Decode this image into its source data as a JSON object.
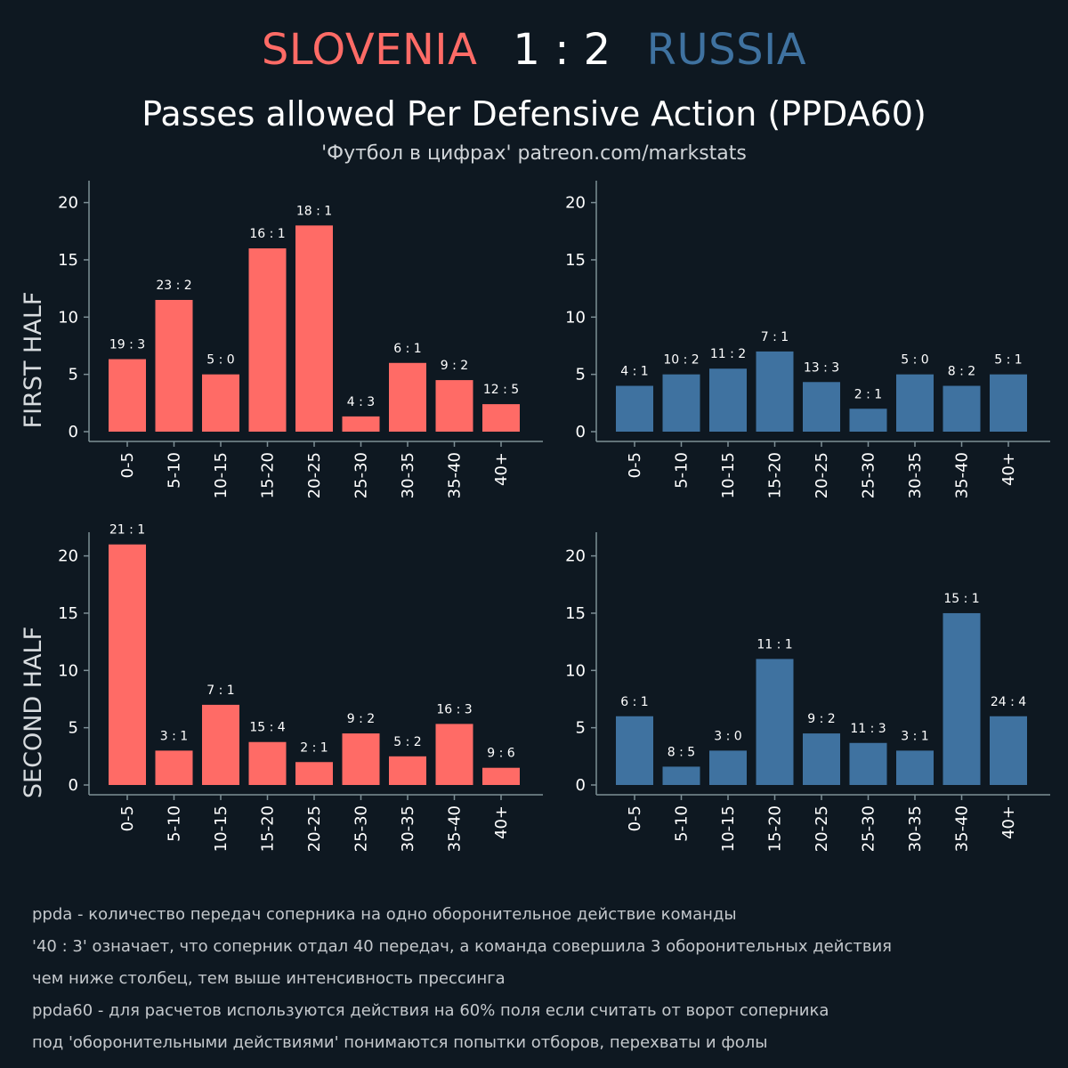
{
  "header": {
    "home_team": "SLOVENIA",
    "score": "1 : 2",
    "away_team": "RUSSIA",
    "title": "Passes allowed Per Defensive Action (PPDA60)",
    "subtitle": "'Футбол в цифрах' patreon.com/markstats"
  },
  "colors": {
    "background": "#0e1821",
    "home": "#ff6b66",
    "away": "#3f72a0",
    "axis": "#7d8f96",
    "text": "#ffffff",
    "muted": "#c4c8cc"
  },
  "chart_data": [
    {
      "type": "bar",
      "panel": "first-half-slovenia",
      "ylabel": "FIRST HALF",
      "team": "home",
      "categories": [
        "0-5",
        "5-10",
        "10-15",
        "15-20",
        "20-25",
        "25-30",
        "30-35",
        "35-40",
        "40+"
      ],
      "values": [
        6.33,
        11.5,
        5,
        16,
        18,
        1.33,
        6,
        4.5,
        2.4
      ],
      "labels": [
        "19 : 3",
        "23 : 2",
        "5 : 0",
        "16 : 1",
        "18 : 1",
        "4 : 3",
        "6 : 1",
        "9 : 2",
        "12 : 5"
      ],
      "ylim": [
        0,
        22
      ],
      "yticks": [
        0,
        5,
        10,
        15,
        20
      ]
    },
    {
      "type": "bar",
      "panel": "first-half-russia",
      "ylabel": "",
      "team": "away",
      "categories": [
        "0-5",
        "5-10",
        "10-15",
        "15-20",
        "20-25",
        "25-30",
        "30-35",
        "35-40",
        "40+"
      ],
      "values": [
        4,
        5,
        5.5,
        7,
        4.33,
        2,
        5,
        4,
        5
      ],
      "labels": [
        "4 : 1",
        "10 : 2",
        "11 : 2",
        "7 : 1",
        "13 : 3",
        "2 : 1",
        "5 : 0",
        "8 : 2",
        "5 : 1"
      ],
      "ylim": [
        0,
        22
      ],
      "yticks": [
        0,
        5,
        10,
        15,
        20
      ]
    },
    {
      "type": "bar",
      "panel": "second-half-slovenia",
      "ylabel": "SECOND HALF",
      "team": "home",
      "categories": [
        "0-5",
        "5-10",
        "10-15",
        "15-20",
        "20-25",
        "25-30",
        "30-35",
        "35-40",
        "40+"
      ],
      "values": [
        21,
        3,
        7,
        3.75,
        2,
        4.5,
        2.5,
        5.33,
        1.5
      ],
      "labels": [
        "21 : 1",
        "3 : 1",
        "7 : 1",
        "15 : 4",
        "2 : 1",
        "9 : 2",
        "5 : 2",
        "16 : 3",
        "9 : 6"
      ],
      "ylim": [
        0,
        22
      ],
      "yticks": [
        0,
        5,
        10,
        15,
        20
      ]
    },
    {
      "type": "bar",
      "panel": "second-half-russia",
      "ylabel": "",
      "team": "away",
      "categories": [
        "0-5",
        "5-10",
        "10-15",
        "15-20",
        "20-25",
        "25-30",
        "30-35",
        "35-40",
        "40+"
      ],
      "values": [
        6,
        1.6,
        3,
        11,
        4.5,
        3.67,
        3,
        15,
        6
      ],
      "labels": [
        "6 : 1",
        "8 : 5",
        "3 : 0",
        "11 : 1",
        "9 : 2",
        "11 : 3",
        "3 : 1",
        "15 : 1",
        "24 : 4"
      ],
      "ylim": [
        0,
        22
      ],
      "yticks": [
        0,
        5,
        10,
        15,
        20
      ]
    }
  ],
  "notes": [
    "ppda - количество передач соперника на одно оборонительное действие команды",
    "'40 : 3' означает, что соперник отдал 40 передач, а команда совершила 3 оборонительных действия",
    "чем ниже столбец, тем выше интенсивность прессинга",
    "ppda60 - для расчетов используются действия на 60% поля если считать от ворот соперника",
    "под 'оборонительными действиями' понимаются попытки отборов, перехваты и фолы"
  ]
}
